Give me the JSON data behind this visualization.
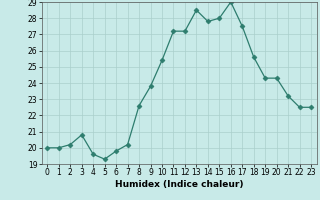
{
  "x": [
    0,
    1,
    2,
    3,
    4,
    5,
    6,
    7,
    8,
    9,
    10,
    11,
    12,
    13,
    14,
    15,
    16,
    17,
    18,
    19,
    20,
    21,
    22,
    23
  ],
  "y": [
    20.0,
    20.0,
    20.2,
    20.8,
    19.6,
    19.3,
    19.8,
    20.2,
    22.6,
    23.8,
    25.4,
    27.2,
    27.2,
    28.5,
    27.8,
    28.0,
    29.0,
    27.5,
    25.6,
    24.3,
    24.3,
    23.2,
    22.5,
    22.5
  ],
  "line_color": "#2e7d6e",
  "marker": "D",
  "marker_size": 2.5,
  "bg_color": "#c8eae8",
  "grid_major_color": "#aacfcc",
  "grid_minor_color": "#bddedd",
  "xlabel": "Humidex (Indice chaleur)",
  "xlim": [
    -0.5,
    23.5
  ],
  "ylim": [
    19,
    29
  ],
  "yticks": [
    19,
    20,
    21,
    22,
    23,
    24,
    25,
    26,
    27,
    28,
    29
  ],
  "xticks": [
    0,
    1,
    2,
    3,
    4,
    5,
    6,
    7,
    8,
    9,
    10,
    11,
    12,
    13,
    14,
    15,
    16,
    17,
    18,
    19,
    20,
    21,
    22,
    23
  ],
  "tick_fontsize": 5.5,
  "label_fontsize": 6.5
}
